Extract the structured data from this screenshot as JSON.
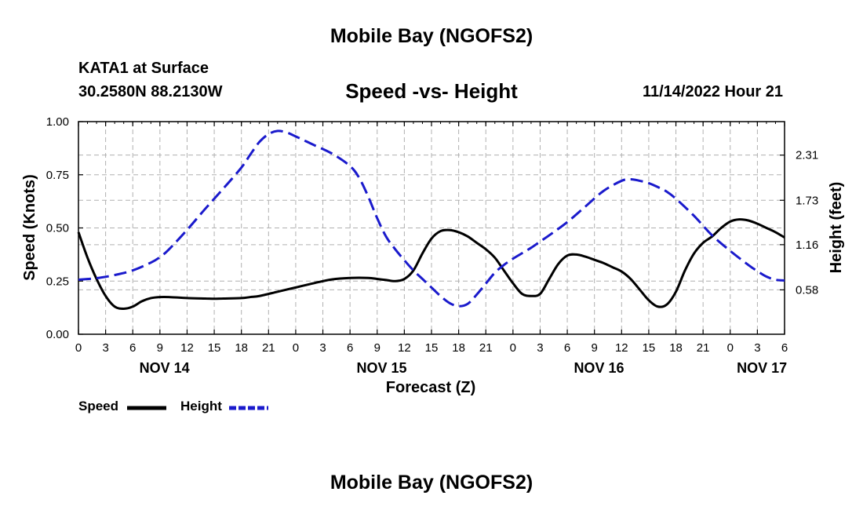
{
  "header": {
    "title": "Mobile Bay (NGOFS2)",
    "station": "KATA1 at Surface",
    "coords": "30.2580N  88.2130W",
    "datetime": "11/14/2022 Hour 21",
    "bottom_title": "Mobile Bay (NGOFS2)"
  },
  "legend": {
    "speed_label": "Speed",
    "height_label": "Height"
  },
  "colors": {
    "speed": "#000000",
    "height": "#1a1acc",
    "grid": "#b0b0b0"
  },
  "chart_data": {
    "type": "line",
    "title": "Speed -vs- Height",
    "xlabel": "Forecast (Z)",
    "ylabel": "Speed (Knots)",
    "y2label": "Height (feet)",
    "xlim": [
      0,
      78
    ],
    "ylim": [
      0,
      1.0
    ],
    "y2lim": [
      0.01,
      2.74
    ],
    "x_ticks": [
      0,
      3,
      6,
      9,
      12,
      15,
      18,
      21,
      24,
      27,
      30,
      33,
      36,
      39,
      42,
      45,
      48,
      51,
      54,
      57,
      60,
      63,
      66,
      69,
      72,
      75,
      78
    ],
    "x_tick_labels": [
      "0",
      "3",
      "6",
      "9",
      "12",
      "15",
      "18",
      "21",
      "0",
      "3",
      "6",
      "9",
      "12",
      "15",
      "18",
      "21",
      "0",
      "3",
      "6",
      "9",
      "12",
      "15",
      "18",
      "21",
      "0",
      "3",
      "6"
    ],
    "y_ticks": [
      0.0,
      0.25,
      0.5,
      0.75,
      1.0
    ],
    "y_tick_labels": [
      "0.00",
      "0.25",
      "0.50",
      "0.75",
      "1.00"
    ],
    "y2_ticks": [
      0.58,
      1.16,
      1.73,
      2.31
    ],
    "y2_tick_labels": [
      "0.58",
      "1.16",
      "1.73",
      "2.31"
    ],
    "date_labels": [
      {
        "x": 9.5,
        "label": "NOV 14"
      },
      {
        "x": 33.5,
        "label": "NOV 15"
      },
      {
        "x": 57.5,
        "label": "NOV 16"
      },
      {
        "x": 75.5,
        "label": "NOV 17"
      }
    ],
    "grid": true,
    "series": [
      {
        "name": "Speed",
        "axis": "left",
        "style": "solid",
        "x": [
          0,
          1,
          2,
          3,
          4,
          5,
          6,
          7,
          8,
          9,
          10,
          12,
          14,
          15,
          16,
          18,
          19,
          20,
          22,
          24,
          26,
          28,
          30,
          32,
          33,
          34,
          35,
          36,
          37,
          38,
          39,
          40,
          41,
          42,
          43,
          44,
          45,
          46,
          47,
          48,
          49,
          50,
          51,
          52,
          53,
          54,
          55,
          56,
          57,
          58,
          59,
          60,
          61,
          62,
          63,
          64,
          65,
          66,
          67,
          68,
          69,
          70,
          71,
          72,
          73,
          74,
          75,
          76,
          77,
          78
        ],
        "values": [
          0.48,
          0.36,
          0.26,
          0.18,
          0.13,
          0.12,
          0.13,
          0.155,
          0.17,
          0.175,
          0.175,
          0.17,
          0.168,
          0.167,
          0.168,
          0.17,
          0.175,
          0.18,
          0.2,
          0.22,
          0.24,
          0.258,
          0.265,
          0.265,
          0.26,
          0.255,
          0.25,
          0.26,
          0.3,
          0.38,
          0.45,
          0.485,
          0.49,
          0.48,
          0.46,
          0.43,
          0.4,
          0.36,
          0.3,
          0.24,
          0.19,
          0.18,
          0.19,
          0.26,
          0.33,
          0.37,
          0.375,
          0.365,
          0.35,
          0.335,
          0.315,
          0.295,
          0.26,
          0.21,
          0.16,
          0.13,
          0.14,
          0.2,
          0.3,
          0.38,
          0.43,
          0.46,
          0.5,
          0.53,
          0.54,
          0.535,
          0.52,
          0.5,
          0.48,
          0.455
        ]
      },
      {
        "name": "Height",
        "axis": "right",
        "style": "dashed",
        "x": [
          0,
          2,
          4,
          6,
          8,
          9,
          10,
          12,
          14,
          16,
          18,
          19,
          20,
          21,
          22,
          23,
          24,
          26,
          28,
          30,
          31,
          32,
          33,
          34,
          35,
          36,
          37,
          38,
          39,
          40,
          41,
          42,
          43,
          44,
          45,
          46,
          47,
          48,
          49,
          50,
          51,
          52,
          54,
          56,
          58,
          60,
          61,
          62,
          63,
          64,
          65,
          66,
          68,
          70,
          72,
          74,
          75,
          76,
          77,
          78
        ],
        "values": [
          0.71,
          0.73,
          0.77,
          0.83,
          0.93,
          1.0,
          1.1,
          1.35,
          1.62,
          1.88,
          2.15,
          2.32,
          2.48,
          2.58,
          2.62,
          2.6,
          2.55,
          2.44,
          2.33,
          2.17,
          2.02,
          1.78,
          1.5,
          1.26,
          1.1,
          0.96,
          0.83,
          0.72,
          0.61,
          0.5,
          0.41,
          0.37,
          0.4,
          0.52,
          0.66,
          0.8,
          0.9,
          0.98,
          1.05,
          1.12,
          1.2,
          1.28,
          1.45,
          1.65,
          1.85,
          1.98,
          2.0,
          1.98,
          1.95,
          1.9,
          1.84,
          1.75,
          1.53,
          1.28,
          1.08,
          0.9,
          0.82,
          0.75,
          0.71,
          0.7
        ]
      }
    ]
  }
}
